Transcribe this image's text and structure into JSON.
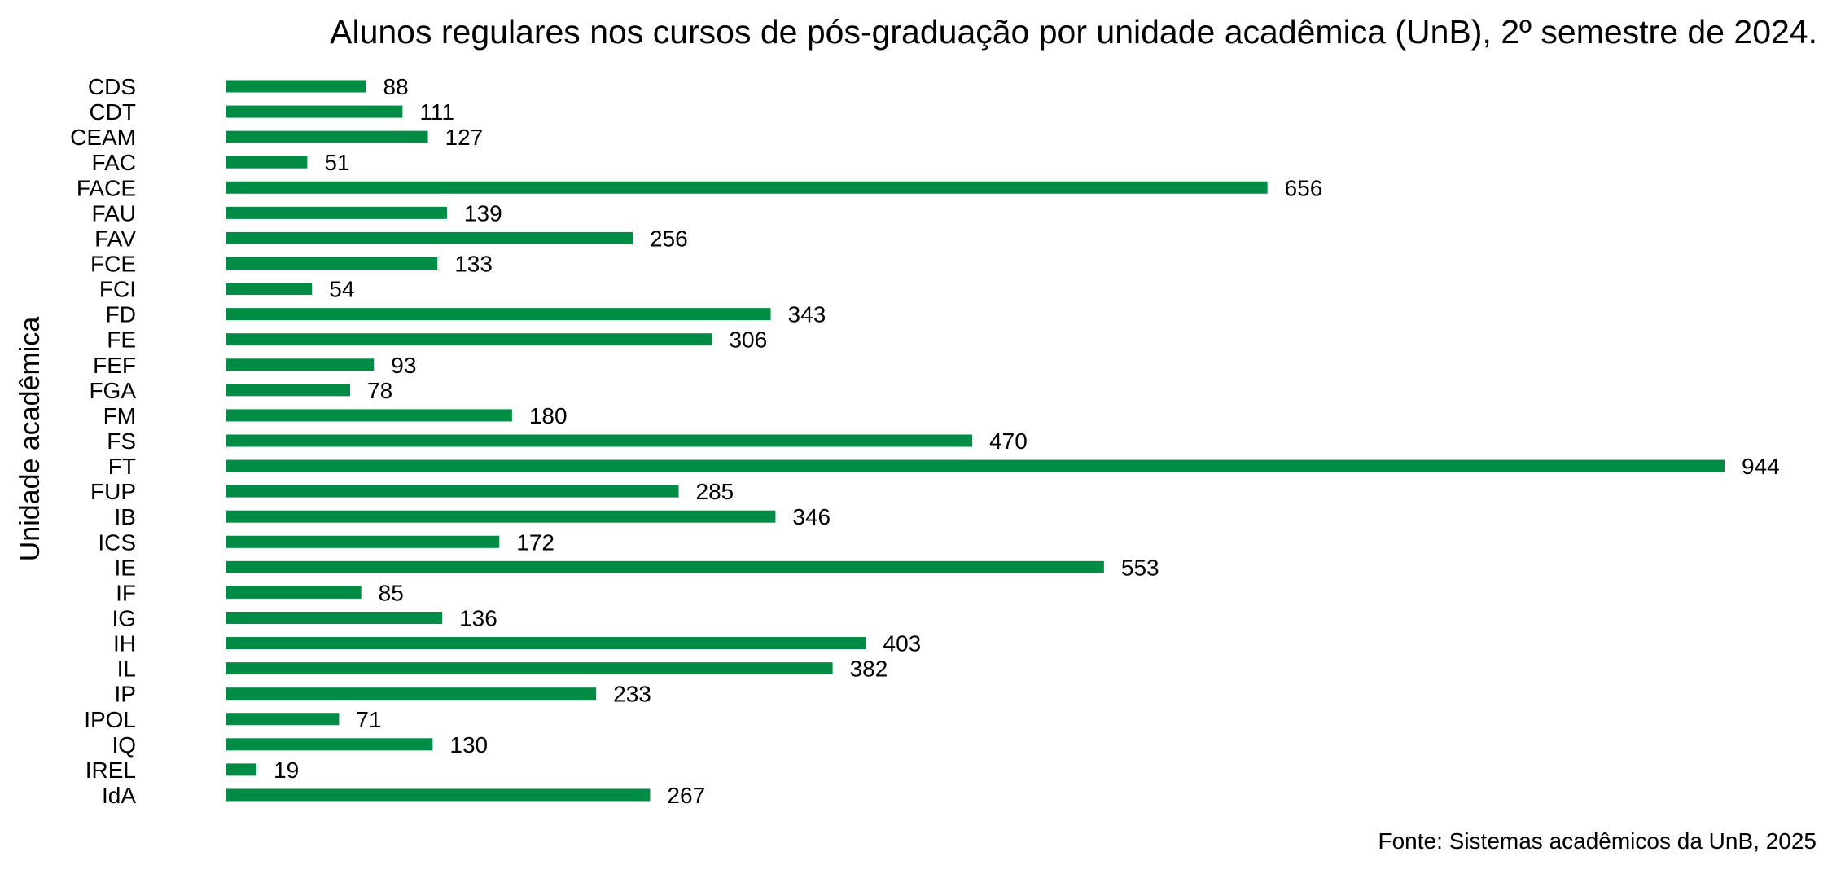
{
  "chart_data": {
    "type": "bar",
    "orientation": "horizontal",
    "title": "Alunos regulares nos cursos de pós-graduação por unidade acadêmica (UnB), 2º semestre de 2024.",
    "ylabel": "Unidade acadêmica",
    "xlabel": "",
    "source": "Fonte: Sistemas acadêmicos da UnB, 2025",
    "bar_color": "#008C45",
    "grid": false,
    "xlim": [
      0,
      944
    ],
    "categories": [
      "CDS",
      "CDT",
      "CEAM",
      "FAC",
      "FACE",
      "FAU",
      "FAV",
      "FCE",
      "FCI",
      "FD",
      "FE",
      "FEF",
      "FGA",
      "FM",
      "FS",
      "FT",
      "FUP",
      "IB",
      "ICS",
      "IE",
      "IF",
      "IG",
      "IH",
      "IL",
      "IP",
      "IPOL",
      "IQ",
      "IREL",
      "IdA"
    ],
    "values": [
      88,
      111,
      127,
      51,
      656,
      139,
      256,
      133,
      54,
      343,
      306,
      93,
      78,
      180,
      470,
      944,
      285,
      346,
      172,
      553,
      85,
      136,
      403,
      382,
      233,
      71,
      130,
      19,
      267
    ],
    "data_labels": [
      "88",
      "111",
      "127",
      "51",
      "656",
      "139",
      "256",
      "133",
      "54",
      "343",
      "306",
      "93",
      "78",
      "180",
      "470",
      "944",
      "285",
      "346",
      "172",
      "553",
      "85",
      "136",
      "403",
      "382",
      "233",
      "71",
      "130",
      "19",
      "267"
    ]
  }
}
